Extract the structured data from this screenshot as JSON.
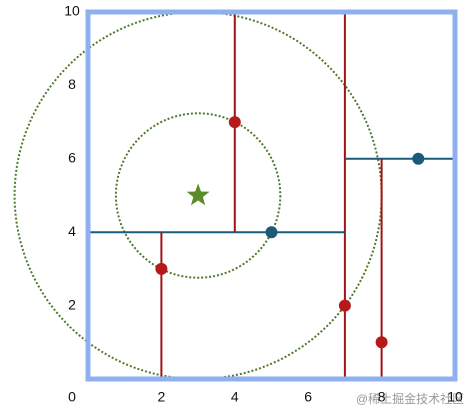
{
  "chart_data": {
    "type": "scatter",
    "xlim": [
      0,
      10
    ],
    "ylim": [
      0,
      10
    ],
    "xticks": [
      0,
      2,
      4,
      6,
      8,
      10
    ],
    "yticks": [
      2,
      4,
      6,
      8,
      10
    ],
    "frame_color": "#8fb0f0",
    "series": [
      {
        "color": "#b5191a",
        "x": [
          2,
          4,
          7,
          8
        ],
        "values": [
          3,
          7,
          2,
          1
        ]
      },
      {
        "color": "#1c5a7a",
        "x": [
          5,
          9
        ],
        "values": [
          4,
          6
        ]
      }
    ],
    "target": {
      "x": 3,
      "y": 5,
      "color": "#5b8c2a"
    },
    "splits": [
      {
        "x": [
          7,
          7
        ],
        "y": [
          0,
          10
        ],
        "color": "#a01414"
      },
      {
        "x": [
          0,
          7
        ],
        "y": [
          4,
          4
        ],
        "color": "#1c5a7a"
      },
      {
        "x": [
          4,
          4
        ],
        "y": [
          4,
          10
        ],
        "color": "#a01414"
      },
      {
        "x": [
          2,
          2
        ],
        "y": [
          0,
          4
        ],
        "color": "#a01414"
      },
      {
        "x": [
          7,
          10
        ],
        "y": [
          6,
          6
        ],
        "color": "#1c5a7a"
      },
      {
        "x": [
          8,
          8
        ],
        "y": [
          0,
          6
        ],
        "color": "#a01414"
      }
    ],
    "circles": [
      {
        "x": 3,
        "y": 5,
        "radius": 2.24,
        "color": "#4f7a2a"
      },
      {
        "x": 3,
        "y": 5,
        "radius": 5,
        "color": "#4f7a2a"
      }
    ],
    "watermark": "@稀土掘金技术社区"
  }
}
